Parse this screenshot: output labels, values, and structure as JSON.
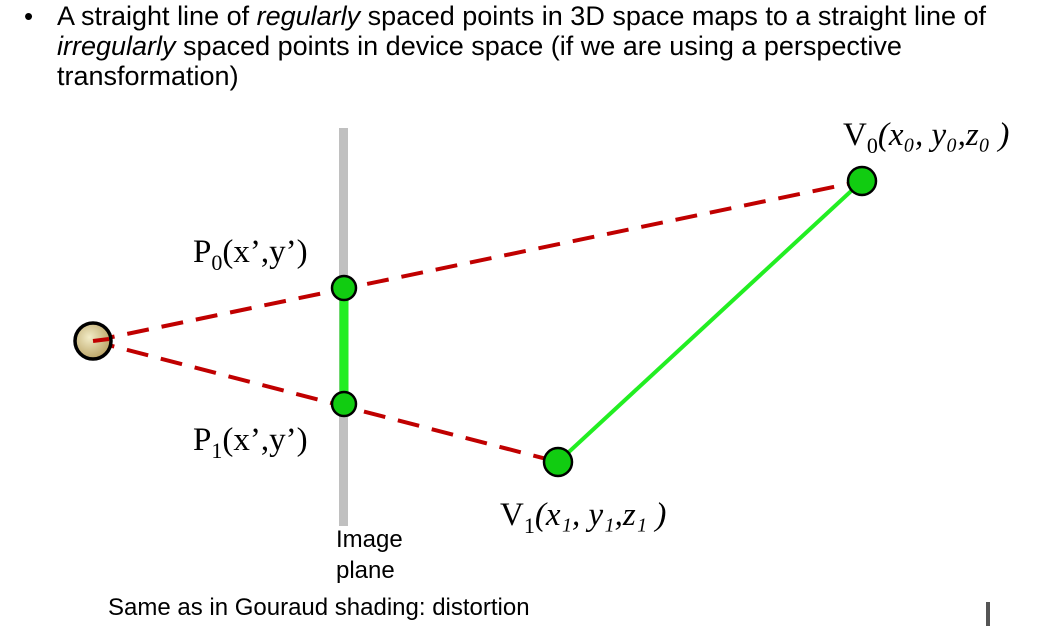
{
  "bullet": {
    "marker": "•",
    "part1": "A straight line of ",
    "em1": "regularly",
    "part2": " spaced points in 3D space maps to a straight line of ",
    "em2": "irregularly",
    "part3": " spaced points in device space (if we are using a perspective transformation)"
  },
  "labels": {
    "v0_prefix": "V",
    "v0_sub": "0",
    "v0_coords": "(x₀, y₀,z₀ )",
    "v1_prefix": "V",
    "v1_sub": "1",
    "v1_coords": "(x₁, y₁,z₁ )",
    "p0_prefix": "P",
    "p0_sub": "0",
    "p0_coords": "(x’,y’)",
    "p1_prefix": "P",
    "p1_sub": "1",
    "p1_coords": "(x’,y’)",
    "image_plane_line1": "Image",
    "image_plane_line2": "plane"
  },
  "caption": "Same as in Gouraud shading: distortion",
  "colors": {
    "projection_ray": "#c00000",
    "segment": "#22ee22",
    "vertex_fill": "#11cc11",
    "image_plane": "#c0c0c0",
    "eye_fill": "#d8c890"
  },
  "icons": {
    "eye": "eye-point-icon"
  }
}
